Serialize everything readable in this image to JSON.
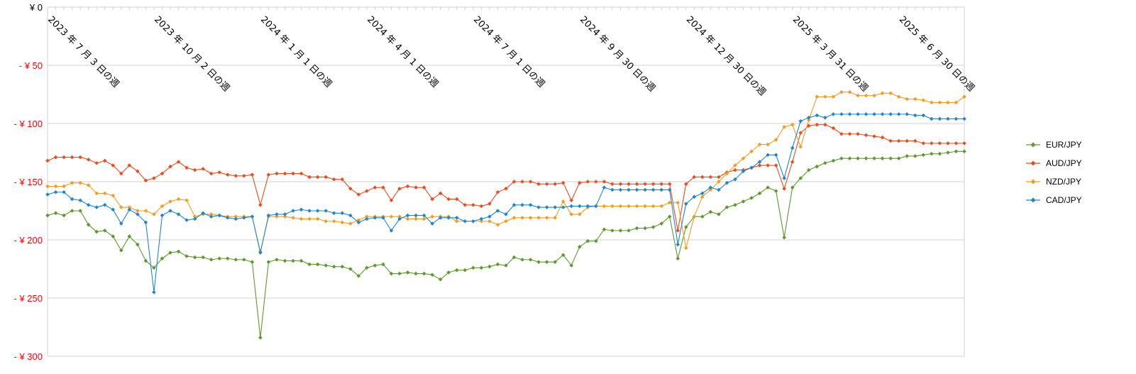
{
  "chart_data": {
    "type": "line",
    "title": "",
    "xlabel": "",
    "ylabel": "",
    "ylim": [
      -300,
      0
    ],
    "yticks": [
      {
        "value": 0,
        "label": "¥ 0",
        "color": "#000000"
      },
      {
        "value": -50,
        "label": "- ¥ 50",
        "color": "#ff0000"
      },
      {
        "value": -100,
        "label": "- ¥ 100",
        "color": "#ff0000"
      },
      {
        "value": -150,
        "label": "- ¥ 150",
        "color": "#ff0000"
      },
      {
        "value": -200,
        "label": "- ¥ 200",
        "color": "#ff0000"
      },
      {
        "value": -250,
        "label": "- ¥ 250",
        "color": "#ff0000"
      },
      {
        "value": -300,
        "label": "- ¥ 300",
        "color": "#ff0000"
      }
    ],
    "x_tick_labels": [
      {
        "index": 0,
        "label": "2023 年 7 月 3 日の週"
      },
      {
        "index": 13,
        "label": "2023 年 10 月 2 日の週"
      },
      {
        "index": 26,
        "label": "2024 年 1 月 1 日の週"
      },
      {
        "index": 39,
        "label": "2024 年 4 月 1 日の週"
      },
      {
        "index": 52,
        "label": "2024 年 7 月 1 日の週"
      },
      {
        "index": 65,
        "label": "2024 年 9 月 30 日の週"
      },
      {
        "index": 78,
        "label": "2024 年 12 月 30 日の週"
      },
      {
        "index": 91,
        "label": "2025 年 3 月 31 日の週"
      },
      {
        "index": 104,
        "label": "2025 年 6 月 30 日の週"
      }
    ],
    "grid": "horizontal",
    "legend_position": "right",
    "series": [
      {
        "name": "EUR/JPY",
        "color": "#5b9b2a",
        "marker": "diamond",
        "values": [
          -179,
          -177,
          -179,
          -175,
          -175,
          -187,
          -193,
          -192,
          -197,
          -209,
          -197,
          -204,
          -218,
          -224,
          -216,
          -211,
          -210,
          -214,
          -215,
          -215,
          -217,
          -216,
          -216,
          -217,
          -217,
          -219,
          -284,
          -219,
          -217,
          -218,
          -218,
          -218,
          -221,
          -221,
          -222,
          -223,
          -223,
          -225,
          -231,
          -224,
          -222,
          -221,
          -229,
          -229,
          -228,
          -229,
          -229,
          -230,
          -234,
          -228,
          -226,
          -226,
          -224,
          -224,
          -223,
          -221,
          -222,
          -215,
          -217,
          -217,
          -219,
          -219,
          -219,
          -213,
          -222,
          -206,
          -201,
          -201,
          -191,
          -192,
          -192,
          -192,
          -190,
          -190,
          -189,
          -186,
          -180,
          -216,
          -189,
          -180,
          -180,
          -176,
          -178,
          -172,
          -170,
          -167,
          -164,
          -160,
          -155,
          -158,
          -198,
          -155,
          -147,
          -140,
          -137,
          -134,
          -132,
          -130,
          -130,
          -130,
          -130,
          -130,
          -130,
          -130,
          -130,
          -128,
          -128,
          -127,
          -126,
          -126,
          -125,
          -124,
          -124
        ]
      },
      {
        "name": "AUD/JPY",
        "color": "#ee4b1c",
        "marker": "diamond",
        "values": [
          -132,
          -129,
          -129,
          -129,
          -129,
          -131,
          -134,
          -132,
          -136,
          -143,
          -136,
          -141,
          -149,
          -147,
          -143,
          -137,
          -133,
          -138,
          -140,
          -139,
          -143,
          -142,
          -144,
          -145,
          -145,
          -144,
          -170,
          -144,
          -143,
          -143,
          -143,
          -143,
          -146,
          -146,
          -146,
          -148,
          -148,
          -156,
          -161,
          -158,
          -155,
          -155,
          -166,
          -156,
          -154,
          -155,
          -155,
          -165,
          -160,
          -165,
          -165,
          -170,
          -170,
          -171,
          -169,
          -159,
          -156,
          -150,
          -150,
          -150,
          -152,
          -152,
          -152,
          -151,
          -166,
          -151,
          -150,
          -150,
          -150,
          -152,
          -152,
          -152,
          -152,
          -152,
          -152,
          -152,
          -152,
          -192,
          -152,
          -146,
          -146,
          -146,
          -146,
          -142,
          -140,
          -140,
          -138,
          -136,
          -136,
          -136,
          -156,
          -133,
          -108,
          -102,
          -101,
          -101,
          -104,
          -109,
          -109,
          -109,
          -110,
          -111,
          -112,
          -115,
          -115,
          -115,
          -115,
          -117,
          -117,
          -117,
          -117,
          -117,
          -117
        ]
      },
      {
        "name": "NZD/JPY",
        "color": "#f59d1b",
        "marker": "diamond",
        "values": [
          -154,
          -154,
          -154,
          -151,
          -151,
          -153,
          -160,
          -160,
          -162,
          -172,
          -172,
          -175,
          -175,
          -178,
          -171,
          -167,
          -165,
          -166,
          -180,
          -178,
          -178,
          -179,
          -180,
          -180,
          -180,
          -180,
          -210,
          -180,
          -180,
          -180,
          -181,
          -182,
          -182,
          -182,
          -184,
          -184,
          -185,
          -186,
          -183,
          -180,
          -180,
          -180,
          -180,
          -180,
          -182,
          -182,
          -182,
          -180,
          -180,
          -180,
          -184,
          -184,
          -184,
          -184,
          -184,
          -187,
          -184,
          -181,
          -181,
          -181,
          -181,
          -181,
          -181,
          -167,
          -178,
          -178,
          -172,
          -171,
          -171,
          -171,
          -171,
          -171,
          -171,
          -171,
          -171,
          -171,
          -168,
          -168,
          -207,
          -180,
          -163,
          -157,
          -150,
          -143,
          -136,
          -130,
          -124,
          -118,
          -118,
          -114,
          -103,
          -101,
          -120,
          -97,
          -77,
          -77,
          -77,
          -73,
          -73,
          -76,
          -76,
          -76,
          -74,
          -74,
          -77,
          -79,
          -79,
          -80,
          -82,
          -82,
          -82,
          -82,
          -77
        ]
      },
      {
        "name": "CAD/JPY",
        "color": "#1e86d1",
        "marker": "diamond",
        "values": [
          -161,
          -159,
          -159,
          -165,
          -166,
          -170,
          -172,
          -170,
          -174,
          -186,
          -174,
          -178,
          -185,
          -245,
          -179,
          -175,
          -178,
          -183,
          -182,
          -177,
          -180,
          -179,
          -181,
          -182,
          -181,
          -180,
          -211,
          -179,
          -178,
          -178,
          -175,
          -174,
          -175,
          -175,
          -175,
          -177,
          -177,
          -179,
          -185,
          -182,
          -181,
          -181,
          -192,
          -182,
          -179,
          -179,
          -179,
          -186,
          -181,
          -181,
          -181,
          -184,
          -184,
          -182,
          -180,
          -175,
          -178,
          -170,
          -170,
          -170,
          -172,
          -172,
          -172,
          -172,
          -171,
          -171,
          -171,
          -171,
          -155,
          -157,
          -157,
          -157,
          -157,
          -157,
          -157,
          -157,
          -157,
          -204,
          -169,
          -163,
          -160,
          -155,
          -157,
          -151,
          -148,
          -141,
          -138,
          -133,
          -127,
          -127,
          -147,
          -121,
          -98,
          -95,
          -93,
          -95,
          -92,
          -92,
          -92,
          -92,
          -92,
          -92,
          -92,
          -92,
          -92,
          -92,
          -93,
          -93,
          -96,
          -96,
          -96,
          -96,
          -96
        ]
      }
    ]
  }
}
